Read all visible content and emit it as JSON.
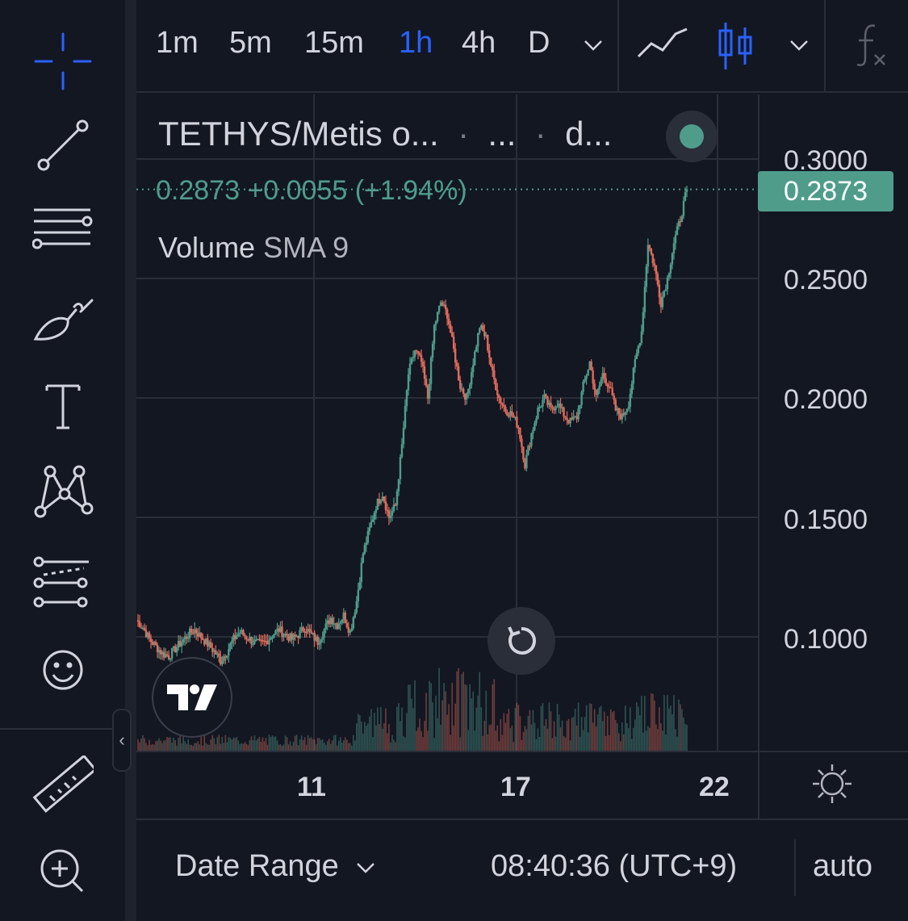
{
  "toolbar": {
    "timeframes": [
      "1m",
      "5m",
      "15m",
      "1h",
      "4h",
      "D"
    ],
    "active_timeframe": "1h"
  },
  "legend": {
    "symbol": "TETHYS/Metis o...",
    "part2": "...",
    "part3": "d...",
    "price_line": "0.2873 +0.0055 (+1.94%)",
    "volume_label": "Volume",
    "volume_sma": "SMA 9"
  },
  "last_price": "0.2873",
  "bottom": {
    "date_range": "Date Range",
    "clock": "08:40:36 (UTC+9)",
    "scale_mode": "auto"
  },
  "colors": {
    "up": "#4f9c8b",
    "down": "#e06a5b",
    "accent": "#2962ff",
    "background": "#131722"
  },
  "chart_data": {
    "type": "candlestick",
    "x_tick_labels": [
      "11",
      "17",
      "22"
    ],
    "y_tick_labels": [
      "0.3000",
      "0.2500",
      "0.2000",
      "0.1500",
      "0.1000"
    ],
    "ylim": [
      0.055,
      0.33
    ],
    "grid": true,
    "close_series": [
      0.107,
      0.104,
      0.099,
      0.096,
      0.093,
      0.092,
      0.095,
      0.098,
      0.101,
      0.103,
      0.1,
      0.097,
      0.094,
      0.09,
      0.094,
      0.099,
      0.102,
      0.1,
      0.098,
      0.097,
      0.098,
      0.101,
      0.103,
      0.101,
      0.099,
      0.101,
      0.104,
      0.101,
      0.098,
      0.103,
      0.108,
      0.105,
      0.109,
      0.102,
      0.115,
      0.135,
      0.145,
      0.155,
      0.16,
      0.15,
      0.155,
      0.18,
      0.21,
      0.22,
      0.215,
      0.2,
      0.23,
      0.24,
      0.235,
      0.22,
      0.205,
      0.2,
      0.215,
      0.23,
      0.225,
      0.21,
      0.2,
      0.195,
      0.193,
      0.188,
      0.172,
      0.185,
      0.195,
      0.2,
      0.195,
      0.198,
      0.193,
      0.19,
      0.192,
      0.205,
      0.215,
      0.2,
      0.21,
      0.205,
      0.195,
      0.192,
      0.198,
      0.215,
      0.228,
      0.265,
      0.255,
      0.24,
      0.25,
      0.265,
      0.275,
      0.2873
    ],
    "volume_peak_index": 79
  }
}
